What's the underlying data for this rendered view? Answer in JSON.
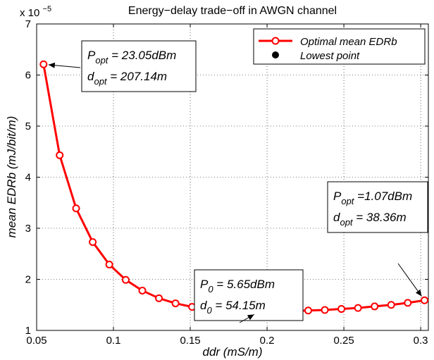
{
  "chart_data": {
    "type": "line",
    "title": "Energy−delay trade−off in AWGN channel",
    "xlabel": "ddr (mS/m)",
    "ylabel": "mean EDRb (mJ/bit/m)",
    "y_exponent_label": "x 10",
    "y_exponent_power": "−5",
    "xlim": [
      0.05,
      0.305
    ],
    "ylim": [
      1,
      7
    ],
    "x_ticks": [
      0.05,
      0.1,
      0.15,
      0.2,
      0.25,
      0.3
    ],
    "x_tick_labels": [
      "0.05",
      "0.1",
      "0.15",
      "0.2",
      "0.25",
      "0.3"
    ],
    "y_ticks": [
      1,
      2,
      3,
      4,
      5,
      6,
      7
    ],
    "y_tick_labels": [
      "1",
      "2",
      "3",
      "4",
      "5",
      "6",
      "7"
    ],
    "grid": true,
    "legend_position": "top-right",
    "series": [
      {
        "name": "Optimal mean EDRb",
        "color": "#ff0000",
        "marker": "circle-open",
        "x": [
          0.0545,
          0.065,
          0.0757,
          0.0865,
          0.0973,
          0.108,
          0.1188,
          0.1296,
          0.1404,
          0.1512,
          0.162,
          0.1728,
          0.1836,
          0.1944,
          0.2052,
          0.216,
          0.2268,
          0.2376,
          0.2484,
          0.2592,
          0.27,
          0.2808,
          0.2916,
          0.3025
        ],
        "y": [
          6.21,
          4.43,
          3.39,
          2.73,
          2.29,
          1.99,
          1.78,
          1.63,
          1.53,
          1.46,
          1.41,
          1.38,
          1.37,
          1.36,
          1.37,
          1.38,
          1.39,
          1.4,
          1.42,
          1.44,
          1.47,
          1.5,
          1.54,
          1.59
        ]
      },
      {
        "name": "Lowest point",
        "color": "#000000",
        "marker": "circle-filled",
        "x": [
          0.1944
        ],
        "y": [
          1.36
        ]
      }
    ],
    "annotations": [
      {
        "lines": [
          {
            "var": "P",
            "sub": "opt",
            "text": " = 23.05dBm"
          },
          {
            "var": "d",
            "sub": "opt",
            "text": " = 207.14m"
          }
        ],
        "target": [
          0.0545,
          6.21
        ]
      },
      {
        "lines": [
          {
            "var": "P",
            "sub": "0",
            "text": " = 5.65dBm"
          },
          {
            "var": "d",
            "sub": "0",
            "text": " = 54.15m"
          }
        ],
        "target": [
          0.1944,
          1.36
        ]
      },
      {
        "lines": [
          {
            "var": "P",
            "sub": "opt",
            "text": " =1.07dBm"
          },
          {
            "var": "d",
            "sub": "opt",
            "text": " = 38.36m"
          }
        ],
        "target": [
          0.3025,
          1.59
        ]
      }
    ]
  }
}
